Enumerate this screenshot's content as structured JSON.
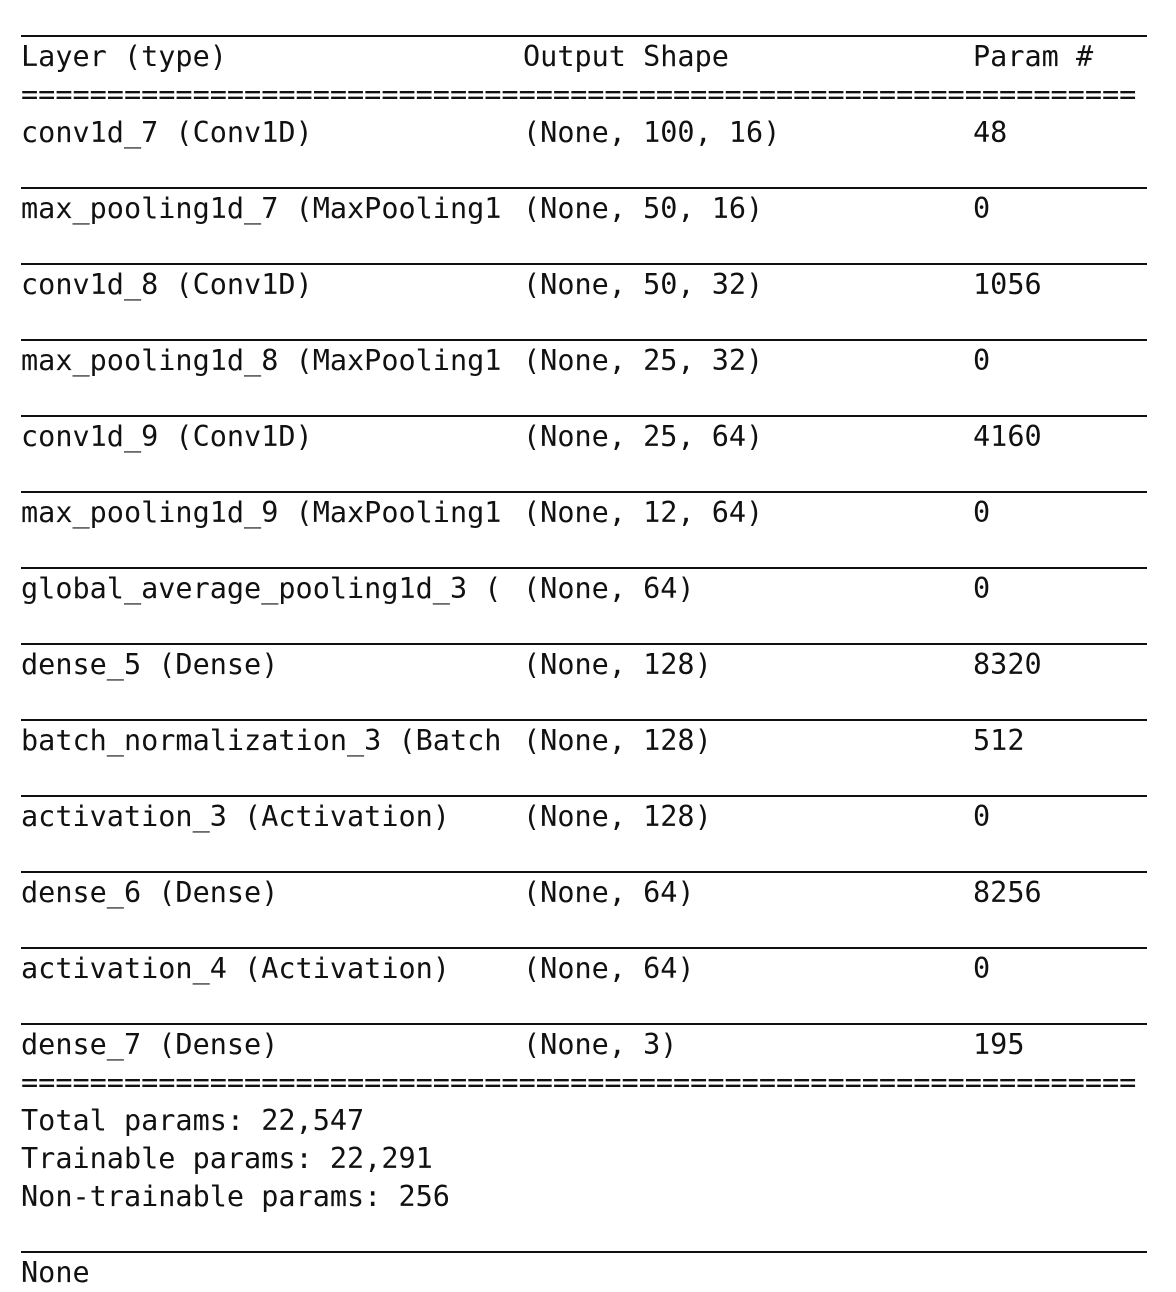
{
  "header": {
    "col1": "Layer (type)",
    "col2": "Output Shape",
    "col3": "Param #"
  },
  "eq_rule": "=================================================================",
  "layers": [
    {
      "name": "conv1d_7 (Conv1D)",
      "shape": "(None, 100, 16)",
      "params": "48"
    },
    {
      "name": "max_pooling1d_7 (MaxPooling1",
      "shape": "(None, 50, 16)",
      "params": "0"
    },
    {
      "name": "conv1d_8 (Conv1D)",
      "shape": "(None, 50, 32)",
      "params": "1056"
    },
    {
      "name": "max_pooling1d_8 (MaxPooling1",
      "shape": "(None, 25, 32)",
      "params": "0"
    },
    {
      "name": "conv1d_9 (Conv1D)",
      "shape": "(None, 25, 64)",
      "params": "4160"
    },
    {
      "name": "max_pooling1d_9 (MaxPooling1",
      "shape": "(None, 12, 64)",
      "params": "0"
    },
    {
      "name": "global_average_pooling1d_3 (",
      "shape": "(None, 64)",
      "params": "0"
    },
    {
      "name": "dense_5 (Dense)",
      "shape": "(None, 128)",
      "params": "8320"
    },
    {
      "name": "batch_normalization_3 (Batch",
      "shape": "(None, 128)",
      "params": "512"
    },
    {
      "name": "activation_3 (Activation)",
      "shape": "(None, 128)",
      "params": "0"
    },
    {
      "name": "dense_6 (Dense)",
      "shape": "(None, 64)",
      "params": "8256"
    },
    {
      "name": "activation_4 (Activation)",
      "shape": "(None, 64)",
      "params": "0"
    },
    {
      "name": "dense_7 (Dense)",
      "shape": "(None, 3)",
      "params": "195"
    }
  ],
  "totals": {
    "total": "Total params: 22,547",
    "trainable": "Trainable params: 22,291",
    "non_trainable": "Non-trainable params: 256"
  },
  "return_value": "None"
}
